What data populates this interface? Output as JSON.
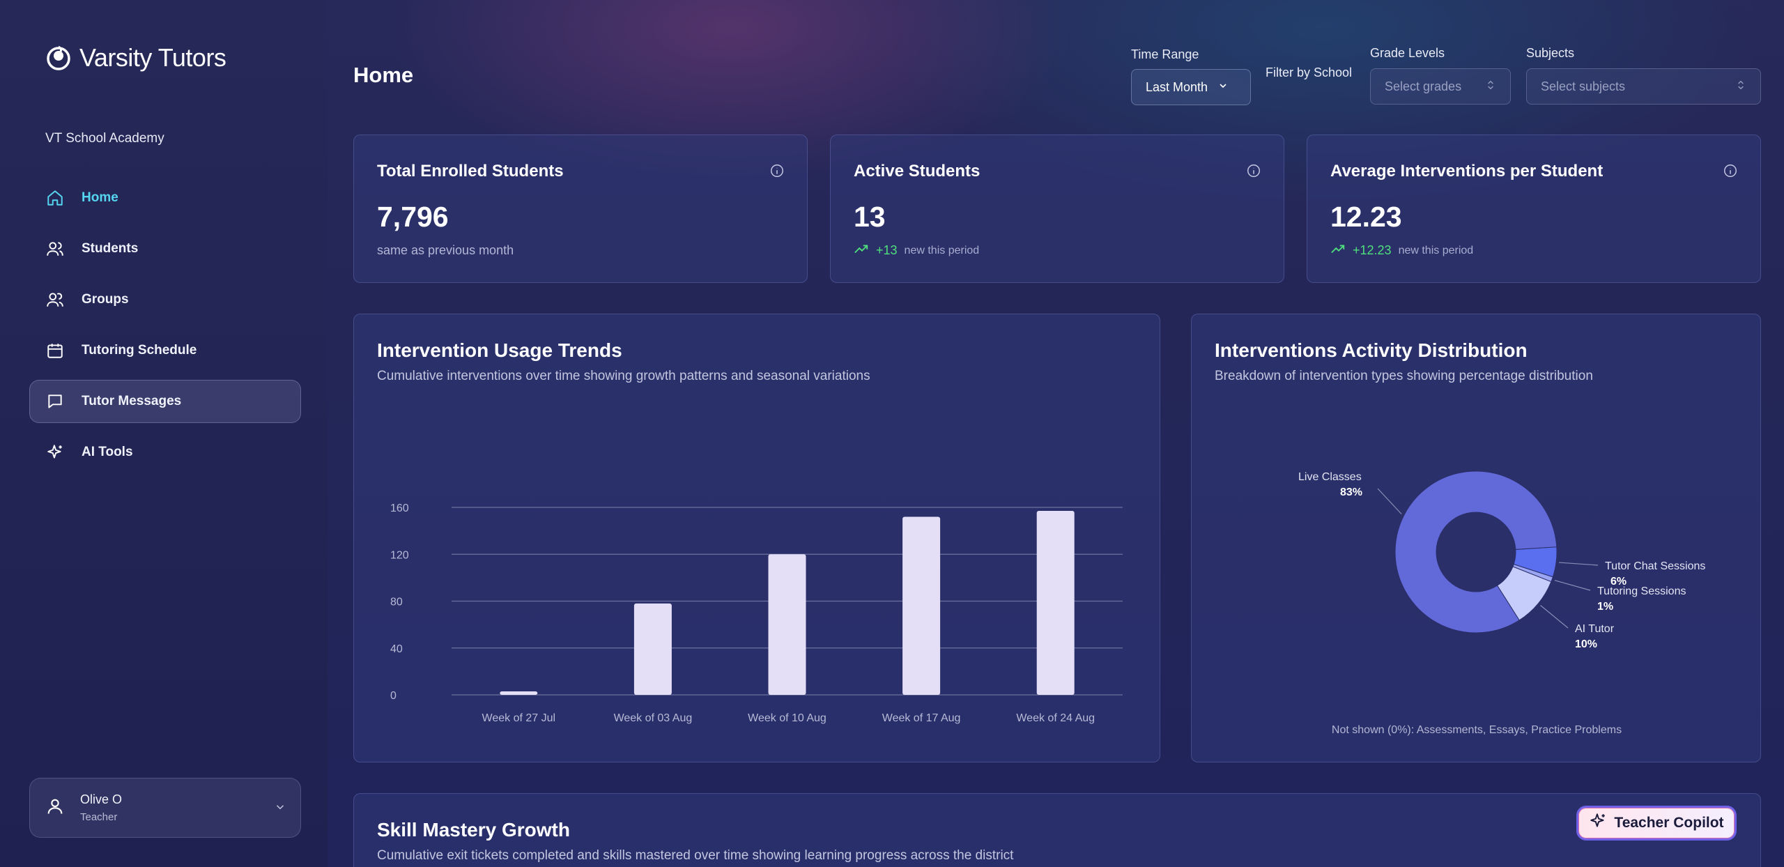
{
  "brand": {
    "name": "Varsity Tutors"
  },
  "sidebar": {
    "school": "VT School Academy",
    "items": [
      {
        "label": "Home",
        "icon": "home-icon"
      },
      {
        "label": "Students",
        "icon": "users-icon"
      },
      {
        "label": "Groups",
        "icon": "group-icon"
      },
      {
        "label": "Tutoring Schedule",
        "icon": "calendar-icon"
      },
      {
        "label": "Tutor Messages",
        "icon": "message-icon"
      },
      {
        "label": "AI Tools",
        "icon": "sparkle-icon"
      }
    ],
    "user": {
      "name": "Olive O",
      "role": "Teacher"
    }
  },
  "header": {
    "title": "Home",
    "time_range": {
      "label": "Time Range",
      "value": "Last Month"
    },
    "filter_by_school": "Filter by School",
    "grade_levels": {
      "label": "Grade Levels",
      "placeholder": "Select grades"
    },
    "subjects": {
      "label": "Subjects",
      "placeholder": "Select subjects"
    }
  },
  "stats": [
    {
      "title": "Total Enrolled Students",
      "value": "7,796",
      "note": "same as previous month"
    },
    {
      "title": "Active Students",
      "value": "13",
      "delta": "+13",
      "note": "new this period"
    },
    {
      "title": "Average Interventions per Student",
      "value": "12.23",
      "delta": "+12.23",
      "note": "new this period"
    }
  ],
  "usage": {
    "title": "Intervention Usage Trends",
    "subtitle": "Cumulative interventions over time showing growth patterns and seasonal variations"
  },
  "distribution": {
    "title": "Interventions Activity Distribution",
    "subtitle": "Breakdown of intervention types showing percentage distribution",
    "footnote": "Not shown (0%): Assessments, Essays, Practice Problems"
  },
  "skill": {
    "title": "Skill Mastery Growth",
    "subtitle": "Cumulative exit tickets completed and skills mastered over time showing learning progress across the district"
  },
  "copilot": {
    "label": "Teacher Copilot"
  },
  "chart_data": [
    {
      "type": "bar",
      "categories": [
        "Week of 27 Jul",
        "Week of 03 Aug",
        "Week of 10 Aug",
        "Week of 17 Aug",
        "Week of 24 Aug"
      ],
      "values": [
        3,
        78,
        120,
        152,
        157
      ],
      "yticks": [
        "0",
        "40",
        "80",
        "120",
        "160"
      ],
      "ylim": [
        0,
        160
      ],
      "grid": true,
      "bar_color": "#e4def6"
    },
    {
      "type": "pie",
      "donut": true,
      "slices": [
        {
          "label": "Live Classes",
          "value": 83,
          "pct": "83%",
          "color": "#6269d8"
        },
        {
          "label": "Tutor Chat Sessions",
          "value": 6,
          "pct": "6%",
          "color": "#5a6ef0"
        },
        {
          "label": "Tutoring Sessions",
          "value": 1,
          "pct": "1%",
          "color": "#9aa6f4"
        },
        {
          "label": "AI Tutor",
          "value": 10,
          "pct": "10%",
          "color": "#c7cdfb"
        }
      ]
    }
  ]
}
